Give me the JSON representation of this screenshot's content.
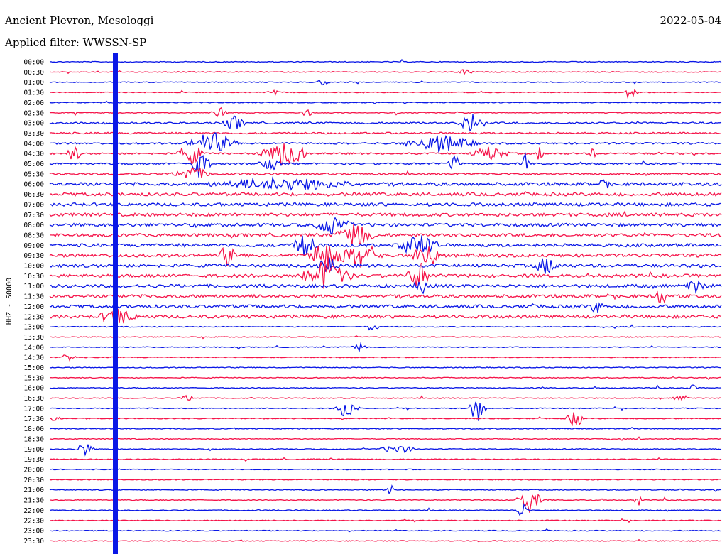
{
  "header": {
    "station": "Ancient Plevron, Mesologgi",
    "filter": "Applied filter: WWSSN-SP",
    "date": "2022-05-04"
  },
  "colors": {
    "blue": "#0a17e6",
    "red": "#f5144a"
  },
  "chart_data": {
    "type": "helicorder",
    "ylabel": "HHZ - 50000",
    "rows": [
      "00:00",
      "00:30",
      "01:00",
      "01:30",
      "02:00",
      "02:30",
      "03:00",
      "03:30",
      "04:00",
      "04:30",
      "05:00",
      "05:30",
      "06:00",
      "06:30",
      "07:00",
      "07:30",
      "08:00",
      "08:30",
      "09:00",
      "09:30",
      "10:00",
      "10:30",
      "11:00",
      "11:30",
      "12:00",
      "12:30",
      "13:00",
      "13:30",
      "14:00",
      "14:30",
      "15:00",
      "15:30",
      "16:00",
      "16:30",
      "17:00",
      "17:30",
      "18:00",
      "18:30",
      "19:00",
      "19:30",
      "20:00",
      "20:30",
      "21:00",
      "21:30",
      "22:00",
      "22:30",
      "23:00",
      "23:30"
    ],
    "row_colors": [
      "blue",
      "red"
    ],
    "grid": false
  }
}
